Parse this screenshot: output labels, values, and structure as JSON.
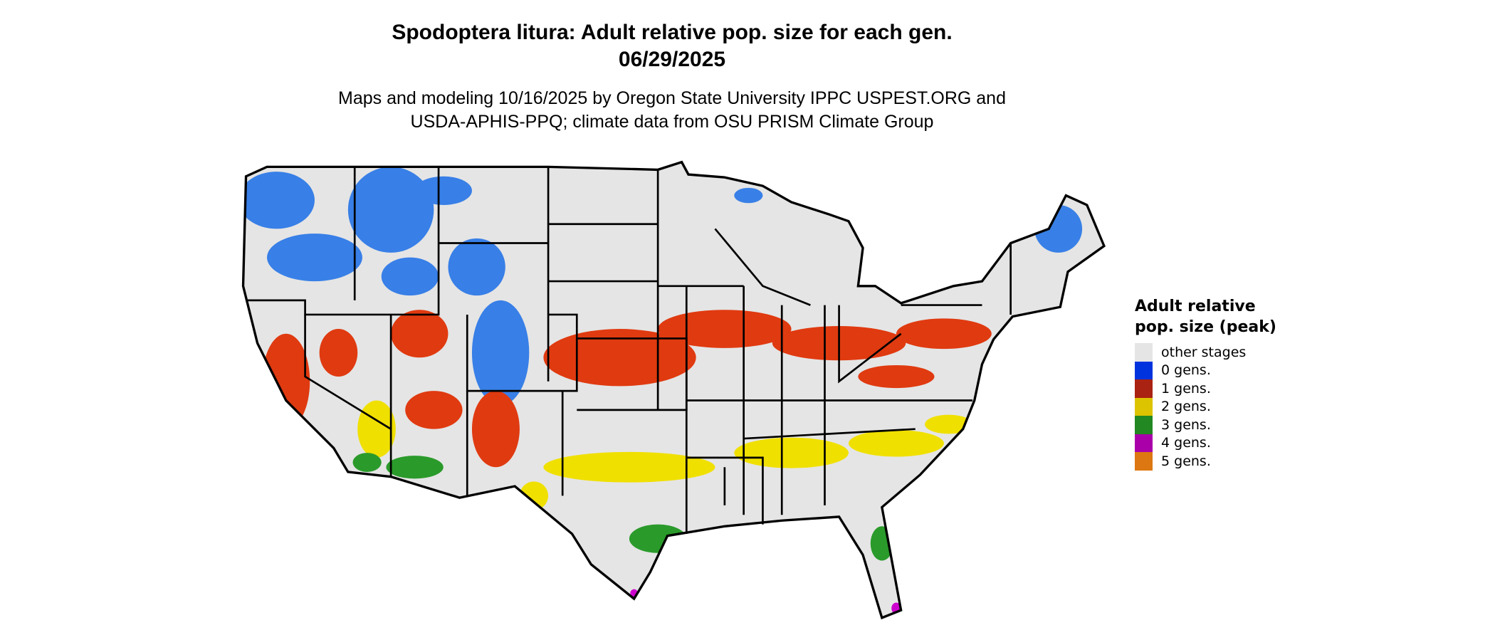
{
  "title": {
    "line1": "Spodoptera litura: Adult relative pop. size for each gen.",
    "line2": "06/29/2025"
  },
  "subtitle": {
    "line1": "Maps and modeling 10/16/2025 by Oregon State University IPPC USPEST.ORG and",
    "line2": "USDA-APHIS-PPQ; climate data from OSU PRISM Climate Group"
  },
  "map": {
    "region": "Contiguous United States",
    "background_color": "#e5e5e5",
    "border_color": "#000000"
  },
  "legend": {
    "title": "Adult relative pop. size (peak)",
    "items": [
      {
        "label": "other stages",
        "color": "#e5e5e5"
      },
      {
        "label": "0 gens.",
        "color": "#0033dd"
      },
      {
        "label": "1 gens.",
        "color": "#aa2211"
      },
      {
        "label": "2 gens.",
        "color": "#ddc400"
      },
      {
        "label": "3 gens.",
        "color": "#228822"
      },
      {
        "label": "4 gens.",
        "color": "#aa00aa"
      },
      {
        "label": "5 gens.",
        "color": "#dd7711"
      }
    ]
  }
}
